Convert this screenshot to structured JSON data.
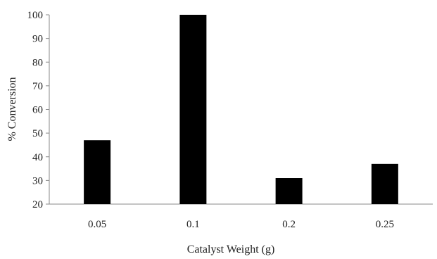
{
  "chart_data": {
    "type": "bar",
    "title": "",
    "xlabel": "Catalyst Weight (g)",
    "ylabel": "% Conversion",
    "categories": [
      "0.05",
      "0.1",
      "0.2",
      "0.25"
    ],
    "values": [
      47,
      100,
      31,
      37
    ],
    "ylim": [
      20,
      100
    ],
    "yticks": [
      20,
      30,
      40,
      50,
      60,
      70,
      80,
      90,
      100
    ],
    "ytick_labels": [
      "20",
      "30",
      "40",
      "50",
      "60",
      "70",
      "80",
      "90",
      "100"
    ],
    "grid": false,
    "legend": "none",
    "colors": {
      "bar": "#000000",
      "axis": "#888888",
      "text": "#222222"
    }
  }
}
